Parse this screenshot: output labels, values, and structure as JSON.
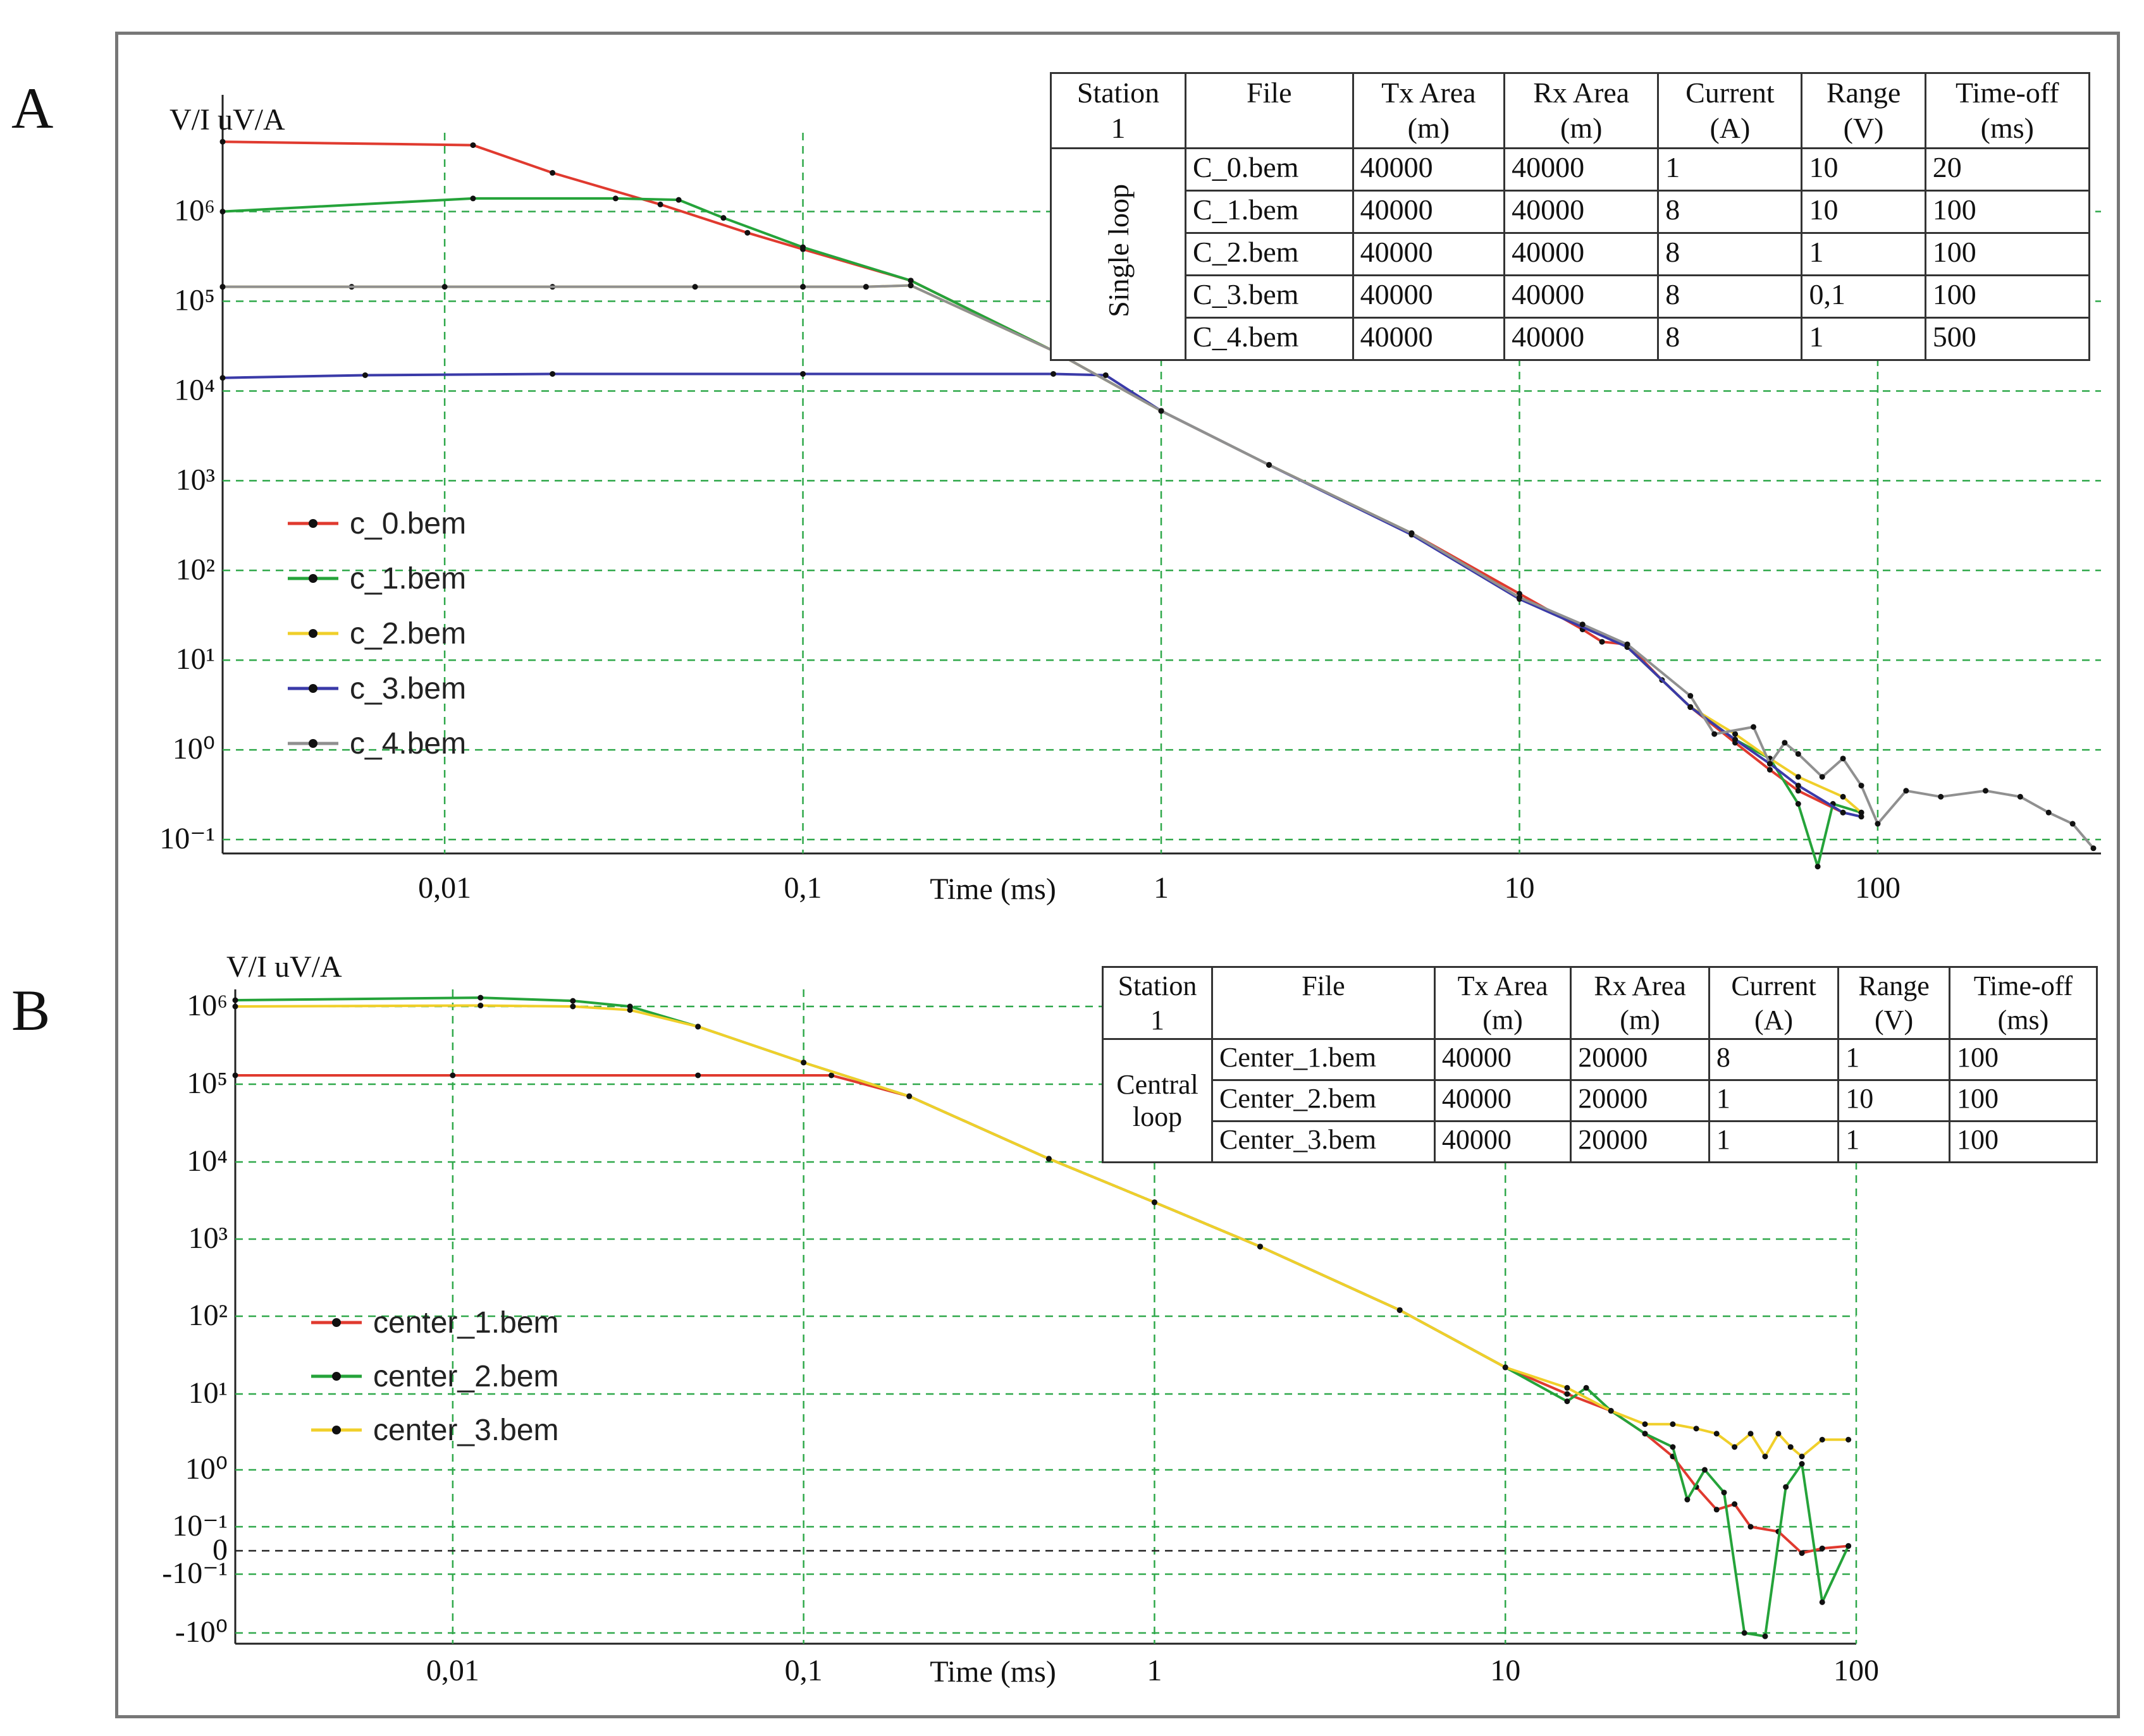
{
  "panels": {
    "a": "A",
    "b": "B"
  },
  "chart_data": [
    {
      "type": "line",
      "id": "A",
      "xscale": "log",
      "xlim": [
        0.0024,
        420
      ],
      "ylim": [
        0.07,
        20000000
      ],
      "ylabel": "V/I  uV/A",
      "xlabel": "Time (ms)",
      "x_ticks": [
        {
          "v": 0.01,
          "label": "0,01"
        },
        {
          "v": 0.1,
          "label": "0,1"
        },
        {
          "v": 1,
          "label": "1"
        },
        {
          "v": 10,
          "label": "10"
        },
        {
          "v": 100,
          "label": "100"
        }
      ],
      "y_ticks": [
        {
          "v": 0.1,
          "label": "10⁻¹"
        },
        {
          "v": 1,
          "label": "10⁰"
        },
        {
          "v": 10,
          "label": "10¹"
        },
        {
          "v": 100,
          "label": "10²"
        },
        {
          "v": 1000,
          "label": "10³"
        },
        {
          "v": 10000,
          "label": "10⁴"
        },
        {
          "v": 100000,
          "label": "10⁵"
        },
        {
          "v": 1000000,
          "label": "10⁶"
        }
      ],
      "legend_position": "left",
      "series": [
        {
          "name": "c_0.bem",
          "color": "#e03a2f",
          "points": [
            [
              0.0024,
              6000000
            ],
            [
              0.012,
              5500000
            ],
            [
              0.02,
              2700000
            ],
            [
              0.04,
              1200000
            ],
            [
              0.07,
              580000
            ],
            [
              0.1,
              380000
            ],
            [
              0.2,
              170000
            ],
            [
              0.5,
              28000
            ],
            [
              1,
              6000
            ],
            [
              2,
              1500
            ],
            [
              5,
              260
            ],
            [
              10,
              55
            ],
            [
              15,
              22
            ],
            [
              17,
              16
            ],
            [
              20,
              15
            ],
            [
              25,
              6
            ],
            [
              30,
              3
            ],
            [
              40,
              1.2
            ],
            [
              50,
              0.6
            ],
            [
              60,
              0.35
            ],
            [
              80,
              0.2
            ]
          ]
        },
        {
          "name": "c_1.bem",
          "color": "#25a33a",
          "points": [
            [
              0.0024,
              1000000
            ],
            [
              0.012,
              1400000
            ],
            [
              0.03,
              1400000
            ],
            [
              0.045,
              1350000
            ],
            [
              0.06,
              850000
            ],
            [
              0.1,
              400000
            ],
            [
              0.2,
              170000
            ],
            [
              0.5,
              28000
            ],
            [
              1,
              6000
            ],
            [
              2,
              1500
            ],
            [
              5,
              260
            ],
            [
              10,
              50
            ],
            [
              20,
              14
            ],
            [
              30,
              3
            ],
            [
              40,
              1.3
            ],
            [
              50,
              0.8
            ],
            [
              60,
              0.25
            ],
            [
              68,
              0.05
            ],
            [
              75,
              0.25
            ],
            [
              90,
              0.2
            ]
          ]
        },
        {
          "name": "c_2.bem",
          "color": "#f0cf2a",
          "points": [
            [
              0.0024,
              145000
            ],
            [
              0.0055,
              145000
            ],
            [
              0.02,
              145000
            ],
            [
              0.1,
              145000
            ],
            [
              0.15,
              145000
            ],
            [
              0.2,
              150000
            ],
            [
              0.5,
              28000
            ],
            [
              1,
              6000
            ],
            [
              2,
              1500
            ],
            [
              5,
              260
            ],
            [
              10,
              50
            ],
            [
              20,
              14
            ],
            [
              30,
              3
            ],
            [
              40,
              1.5
            ],
            [
              50,
              0.8
            ],
            [
              60,
              0.5
            ],
            [
              80,
              0.3
            ],
            [
              90,
              0.2
            ]
          ]
        },
        {
          "name": "c_3.bem",
          "color": "#3a3aa8",
          "points": [
            [
              0.0024,
              14000
            ],
            [
              0.006,
              15000
            ],
            [
              0.02,
              15500
            ],
            [
              0.1,
              15500
            ],
            [
              0.5,
              15500
            ],
            [
              0.7,
              15000
            ],
            [
              1,
              6000
            ],
            [
              2,
              1500
            ],
            [
              5,
              250
            ],
            [
              10,
              48
            ],
            [
              20,
              14
            ],
            [
              30,
              3
            ],
            [
              40,
              1.3
            ],
            [
              50,
              0.7
            ],
            [
              60,
              0.4
            ],
            [
              80,
              0.2
            ],
            [
              90,
              0.18
            ]
          ]
        },
        {
          "name": "c_4.bem",
          "color": "#909090",
          "points": [
            [
              0.0024,
              145000
            ],
            [
              0.01,
              145000
            ],
            [
              0.05,
              145000
            ],
            [
              0.1,
              145000
            ],
            [
              0.15,
              145000
            ],
            [
              0.2,
              150000
            ],
            [
              0.5,
              28000
            ],
            [
              1,
              6000
            ],
            [
              2,
              1500
            ],
            [
              5,
              260
            ],
            [
              10,
              50
            ],
            [
              15,
              25
            ],
            [
              20,
              15
            ],
            [
              30,
              4
            ],
            [
              35,
              1.5
            ],
            [
              45,
              1.8
            ],
            [
              50,
              0.7
            ],
            [
              55,
              1.2
            ],
            [
              60,
              0.9
            ],
            [
              70,
              0.5
            ],
            [
              80,
              0.8
            ],
            [
              90,
              0.4
            ],
            [
              100,
              0.15
            ],
            [
              120,
              0.35
            ],
            [
              150,
              0.3
            ],
            [
              200,
              0.35
            ],
            [
              250,
              0.3
            ],
            [
              300,
              0.2
            ],
            [
              350,
              0.15
            ],
            [
              400,
              0.08
            ]
          ]
        }
      ],
      "table": {
        "headers": [
          [
            "Station",
            "1"
          ],
          [
            "File",
            ""
          ],
          [
            "Tx Area",
            "(m)"
          ],
          [
            "Rx Area",
            "(m)"
          ],
          [
            "Current",
            "(A)"
          ],
          [
            "Range",
            "(V)"
          ],
          [
            "Time-off",
            "(ms)"
          ]
        ],
        "group_label": "Single loop",
        "rows": [
          [
            "C_0.bem",
            "40000",
            "40000",
            "1",
            "10",
            "20"
          ],
          [
            "C_1.bem",
            "40000",
            "40000",
            "8",
            "10",
            "100"
          ],
          [
            "C_2.bem",
            "40000",
            "40000",
            "8",
            "1",
            "100"
          ],
          [
            "C_3.bem",
            "40000",
            "40000",
            "8",
            "0,1",
            "100"
          ],
          [
            "C_4.bem",
            "40000",
            "40000",
            "8",
            "1",
            "500"
          ]
        ]
      }
    },
    {
      "type": "line",
      "id": "B",
      "xscale": "log",
      "xlim": [
        0.0024,
        100
      ],
      "ylim": [
        -1.8,
        2500000
      ],
      "ylabel": "V/I  uV/A",
      "xlabel": "Time (ms)",
      "x_ticks": [
        {
          "v": 0.01,
          "label": "0,01"
        },
        {
          "v": 0.1,
          "label": "0,1"
        },
        {
          "v": 1,
          "label": "1"
        },
        {
          "v": 10,
          "label": "10"
        },
        {
          "v": 100,
          "label": "100"
        }
      ],
      "y_ticks": [
        {
          "v": -1,
          "label": "-10⁰"
        },
        {
          "v": -0.1,
          "label": "-10⁻¹"
        },
        {
          "v": 0,
          "label": "0"
        },
        {
          "v": 0.1,
          "label": "10⁻¹"
        },
        {
          "v": 1,
          "label": "10⁰"
        },
        {
          "v": 10,
          "label": "10¹"
        },
        {
          "v": 100,
          "label": "10²"
        },
        {
          "v": 1000,
          "label": "10³"
        },
        {
          "v": 10000,
          "label": "10⁴"
        },
        {
          "v": 100000,
          "label": "10⁵"
        },
        {
          "v": 1000000,
          "label": "10⁶"
        }
      ],
      "legend_position": "left",
      "series": [
        {
          "name": "center_1.bem",
          "color": "#e03a2f",
          "points": [
            [
              0.0024,
              130000
            ],
            [
              0.01,
              130000
            ],
            [
              0.05,
              130000
            ],
            [
              0.12,
              130000
            ],
            [
              0.2,
              70000
            ],
            [
              0.5,
              11000
            ],
            [
              1,
              3000
            ],
            [
              2,
              800
            ],
            [
              5,
              120
            ],
            [
              10,
              22
            ],
            [
              15,
              10
            ],
            [
              20,
              6
            ],
            [
              25,
              3
            ],
            [
              30,
              1.5
            ],
            [
              35,
              0.5
            ],
            [
              40,
              0.2
            ],
            [
              45,
              0.25
            ],
            [
              50,
              0.1
            ],
            [
              60,
              0.08
            ],
            [
              70,
              -0.01
            ],
            [
              80,
              0.01
            ],
            [
              95,
              0.02
            ]
          ]
        },
        {
          "name": "center_2.bem",
          "color": "#25a33a",
          "points": [
            [
              0.0024,
              1400000
            ],
            [
              0.012,
              1600000
            ],
            [
              0.022,
              1350000
            ],
            [
              0.032,
              1000000
            ],
            [
              0.05,
              550000
            ],
            [
              0.1,
              190000
            ],
            [
              0.2,
              70000
            ],
            [
              0.5,
              11000
            ],
            [
              1,
              3000
            ],
            [
              2,
              800
            ],
            [
              5,
              120
            ],
            [
              10,
              22
            ],
            [
              15,
              8
            ],
            [
              17,
              12
            ],
            [
              20,
              6
            ],
            [
              25,
              3
            ],
            [
              30,
              2
            ],
            [
              33,
              0.3
            ],
            [
              37,
              1
            ],
            [
              42,
              0.4
            ],
            [
              48,
              -1
            ],
            [
              55,
              -1.2
            ],
            [
              63,
              0.5
            ],
            [
              70,
              1.2
            ],
            [
              80,
              -0.3
            ],
            [
              95,
              0.02
            ]
          ]
        },
        {
          "name": "center_3.bem",
          "color": "#f0cf2a",
          "points": [
            [
              0.0024,
              1000000
            ],
            [
              0.012,
              1050000
            ],
            [
              0.022,
              1000000
            ],
            [
              0.032,
              900000
            ],
            [
              0.05,
              550000
            ],
            [
              0.1,
              190000
            ],
            [
              0.2,
              70000
            ],
            [
              0.5,
              11000
            ],
            [
              1,
              3000
            ],
            [
              2,
              800
            ],
            [
              5,
              120
            ],
            [
              10,
              22
            ],
            [
              15,
              12
            ],
            [
              20,
              6
            ],
            [
              25,
              4
            ],
            [
              30,
              4
            ],
            [
              35,
              3.5
            ],
            [
              40,
              3
            ],
            [
              45,
              2
            ],
            [
              50,
              3
            ],
            [
              55,
              1.5
            ],
            [
              60,
              3
            ],
            [
              65,
              2
            ],
            [
              70,
              1.5
            ],
            [
              80,
              2.5
            ],
            [
              95,
              2.5
            ]
          ]
        }
      ],
      "table": {
        "headers": [
          [
            "Station",
            "1"
          ],
          [
            "File",
            ""
          ],
          [
            "Tx Area",
            "(m)"
          ],
          [
            "Rx Area",
            "(m)"
          ],
          [
            "Current",
            "(A)"
          ],
          [
            "Range",
            "(V)"
          ],
          [
            "Time-off",
            "(ms)"
          ]
        ],
        "group_label": "Central loop",
        "rows": [
          [
            "Center_1.bem",
            "40000",
            "20000",
            "8",
            "1",
            "100"
          ],
          [
            "Center_2.bem",
            "40000",
            "20000",
            "1",
            "10",
            "100"
          ],
          [
            "Center_3.bem",
            "40000",
            "20000",
            "1",
            "1",
            "100"
          ]
        ]
      }
    }
  ]
}
